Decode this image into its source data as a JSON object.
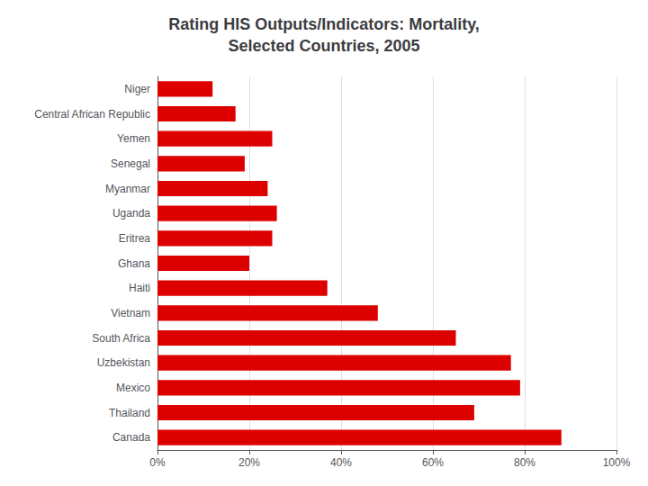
{
  "chart_data": {
    "type": "bar",
    "title": "Rating HIS Outputs/Indicators: Mortality,\nSelected Countries, 2005",
    "orientation": "horizontal",
    "categories": [
      "Niger",
      "Central African Republic",
      "Yemen",
      "Senegal",
      "Myanmar",
      "Uganda",
      "Eritrea",
      "Ghana",
      "Haiti",
      "Vietnam",
      "South Africa",
      "Uzbekistan",
      "Mexico",
      "Thailand",
      "Canada"
    ],
    "values": [
      12,
      17,
      25,
      19,
      24,
      26,
      25,
      20,
      37,
      48,
      65,
      77,
      79,
      69,
      88
    ],
    "color": "#dd0000",
    "xlim": [
      0,
      100
    ],
    "xticks": [
      {
        "value": 0,
        "label": "0%"
      },
      {
        "value": 20,
        "label": "20%"
      },
      {
        "value": 40,
        "label": "40%"
      },
      {
        "value": 60,
        "label": "60%"
      },
      {
        "value": 80,
        "label": "80%"
      },
      {
        "value": 100,
        "label": "100%"
      }
    ],
    "grid": true
  }
}
